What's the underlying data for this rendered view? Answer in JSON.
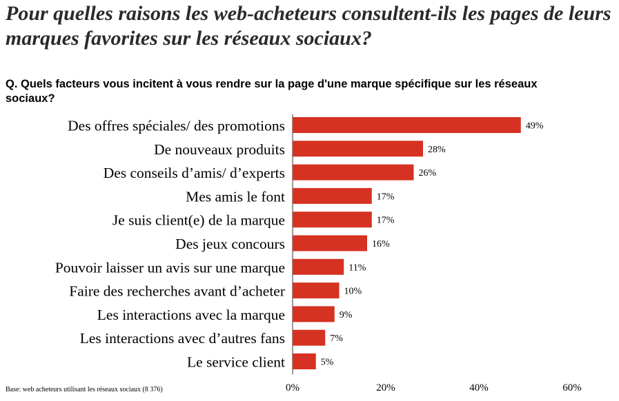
{
  "title": "Pour quelles raisons les web-acheteurs consultent-ils les pages de leurs marques favorites sur les réseaux sociaux?",
  "question": "Q. Quels facteurs vous incitent à vous rendre sur la page d'une marque spécifique sur les réseaux sociaux?",
  "footnote": "Base: web acheteurs utilisant les réseaux sociaux (8 376)",
  "colors": {
    "bar": "#d63223"
  },
  "chart_data": {
    "type": "bar",
    "orientation": "horizontal",
    "categories": [
      "Des offres spéciales/ des promotions",
      "De nouveaux produits",
      "Des conseils d’amis/ d’experts",
      "Mes amis le font",
      "Je suis client(e) de la marque",
      "Des jeux concours",
      "Pouvoir laisser un avis sur une marque",
      "Faire des recherches avant d’acheter",
      "Les interactions avec la marque",
      "Les interactions avec d’autres fans",
      "Le service client"
    ],
    "values": [
      49,
      28,
      26,
      17,
      17,
      16,
      11,
      10,
      9,
      7,
      5
    ],
    "value_labels": [
      "49%",
      "28%",
      "26%",
      "17%",
      "17%",
      "16%",
      "11%",
      "10%",
      "9%",
      "7%",
      "5%"
    ],
    "xlim": [
      0,
      60
    ],
    "x_ticks": [
      0,
      20,
      40,
      60
    ],
    "x_tick_labels": [
      "0%",
      "20%",
      "40%",
      "60%"
    ],
    "grid": false,
    "legend": "none"
  }
}
